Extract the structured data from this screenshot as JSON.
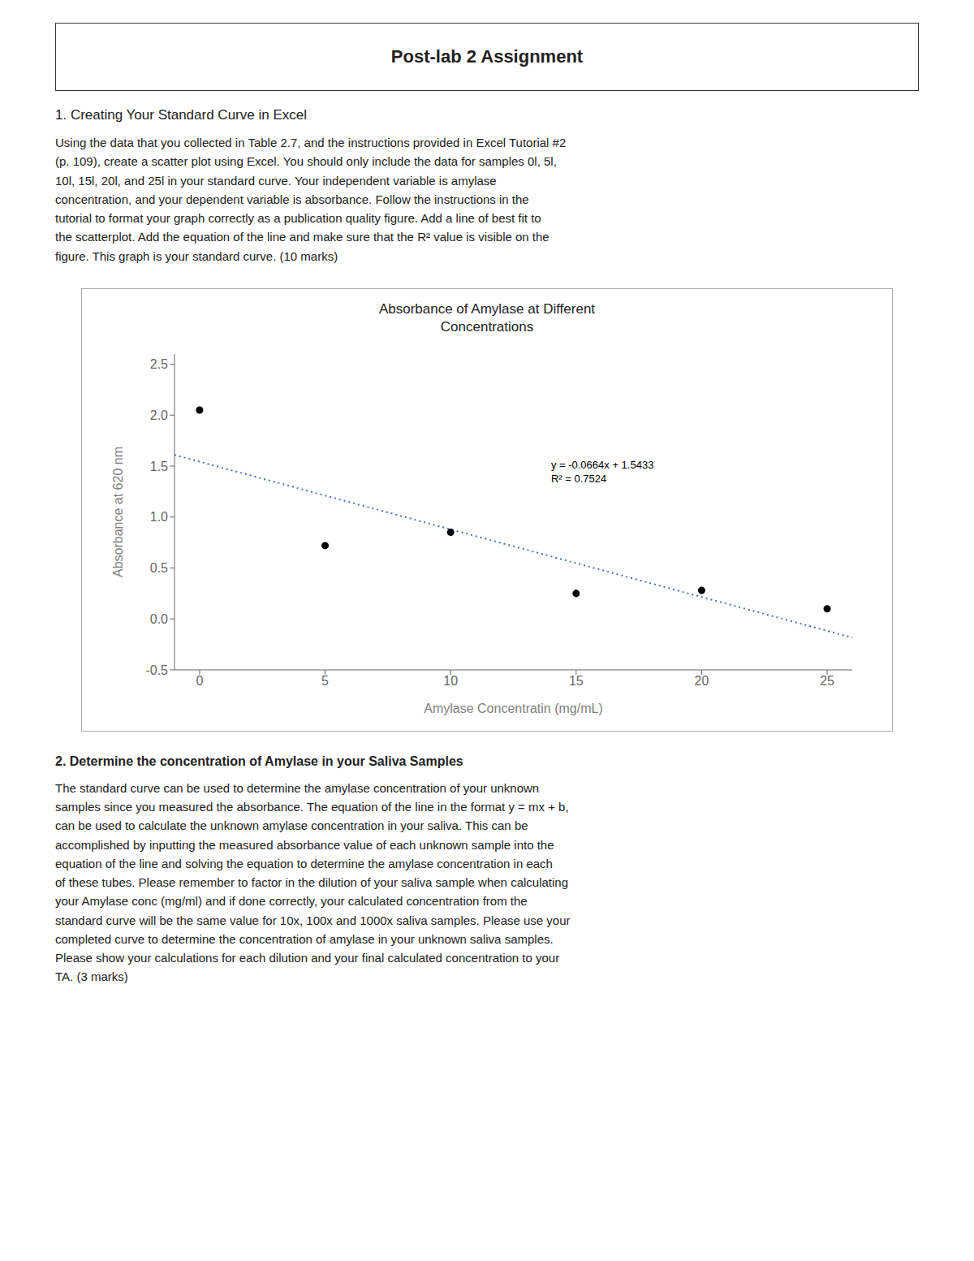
{
  "title_box_text": "Post-lab 2 Assignment",
  "section1_heading": "1. Creating Your Standard Curve in Excel",
  "section1_para": "Using the data that you collected in Table 2.7, and the instructions provided in Excel Tutorial #2\n(p. 109), create a scatter plot using Excel. You should only include the data for samples 0l, 5l,\n10l, 15l, 20l, and 25l in your standard curve. Your independent variable is amylase\nconcentration, and your dependent variable is absorbance. Follow the instructions in the\ntutorial to format your graph correctly as a publication quality figure. Add a line of best fit to\nthe scatterplot. Add the equation of the line and make sure that the R² value is visible on the\nfigure. This graph is your standard curve. (10 marks)",
  "section2_heading": "2. Determine the concentration of Amylase in your Saliva Samples",
  "section2_para": "The standard curve can be used to determine the amylase concentration of your unknown\nsamples since you measured the absorbance. The equation of the line in the format y = mx + b,\ncan be used to calculate the unknown amylase concentration in your saliva. This can be\naccomplished by inputting the measured absorbance value of each unknown sample into the\nequation of the line and solving the equation to determine the amylase concentration in each\nof these tubes. Please remember to factor in the dilution of your saliva sample when calculating\nyour Amylase conc (mg/ml) and if done correctly, your calculated concentration from the\nstandard curve will be the same value for 10x, 100x and 1000x saliva samples. Please use your\ncompleted curve to determine the concentration of amylase in your unknown saliva samples.\nPlease show your calculations for each dilution and your final calculated concentration to your\nTA. (3 marks)",
  "chart_data": {
    "type": "scatter",
    "title": "Absorbance of Amylase at Different\nConcentrations",
    "x": [
      0,
      5,
      10,
      15,
      20,
      25
    ],
    "values": [
      2.05,
      0.72,
      0.85,
      0.25,
      0.28,
      0.1
    ],
    "color": "#000000",
    "xlabel": "Amylase Concentratin (mg/mL)",
    "ylabel": "Absorbance at 620 nm",
    "xlim": [
      -1,
      26
    ],
    "ylim": [
      -0.5,
      2.6
    ],
    "xticks": [
      0,
      5,
      10,
      15,
      20,
      25
    ],
    "yticks": [
      -0.5,
      {
        "value": 0,
        "label": "0.0"
      },
      0.5,
      {
        "value": 1.0,
        "label": "1.0"
      },
      1.5,
      {
        "value": 2.0,
        "label": "2.0"
      },
      2.5
    ],
    "grid": false,
    "trendline": {
      "slope": -0.0664,
      "intercept": 1.5433,
      "color": "#4472C4",
      "line_style": "dotted"
    },
    "annotation": {
      "lines": [
        "y = -0.0664x + 1.5433",
        "R² = 0.7524"
      ],
      "x": 14,
      "y": 1.55
    }
  }
}
